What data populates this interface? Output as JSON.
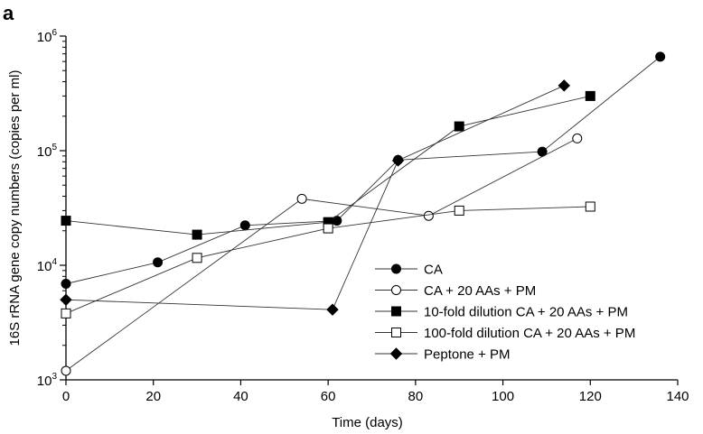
{
  "panel_label": "a",
  "chart_data": {
    "type": "line",
    "xlabel": "Time (days)",
    "ylabel": "16S rRNA gene copy numbers (copies per ml)",
    "xlim": [
      0,
      140
    ],
    "ylim": [
      1000,
      1000000
    ],
    "yscale": "log",
    "x_ticks": [
      0,
      20,
      40,
      60,
      80,
      100,
      120,
      140
    ],
    "y_ticks": [
      {
        "value": 1000,
        "base": "10",
        "exp": "3"
      },
      {
        "value": 10000,
        "base": "10",
        "exp": "4"
      },
      {
        "value": 100000,
        "base": "10",
        "exp": "5"
      },
      {
        "value": 1000000,
        "base": "10",
        "exp": "6"
      }
    ],
    "grid": false,
    "legend_position": "bottom-right",
    "series": [
      {
        "name": "CA",
        "marker": "circle-filled",
        "x": [
          0,
          21,
          41,
          62,
          76,
          109,
          136
        ],
        "y": [
          6900,
          10600,
          22300,
          24500,
          83000,
          98000,
          660000
        ]
      },
      {
        "name": "CA + 20 AAs + PM",
        "marker": "circle-open",
        "x": [
          0,
          54,
          83,
          117
        ],
        "y": [
          1200,
          38000,
          27000,
          128000
        ]
      },
      {
        "name": "10-fold dilution CA + 20 AAs + PM",
        "marker": "square-filled",
        "x": [
          0,
          30,
          60,
          90,
          120
        ],
        "y": [
          24500,
          18500,
          23800,
          163000,
          300000
        ]
      },
      {
        "name": "100-fold dilution CA + 20 AAs + PM",
        "marker": "square-open",
        "x": [
          0,
          30,
          60,
          90,
          120
        ],
        "y": [
          3800,
          11600,
          21000,
          30000,
          32500
        ]
      },
      {
        "name": "Peptone + PM",
        "marker": "diamond-filled",
        "x": [
          0,
          61,
          76,
          114
        ],
        "y": [
          5000,
          4100,
          82000,
          370000
        ]
      }
    ]
  }
}
